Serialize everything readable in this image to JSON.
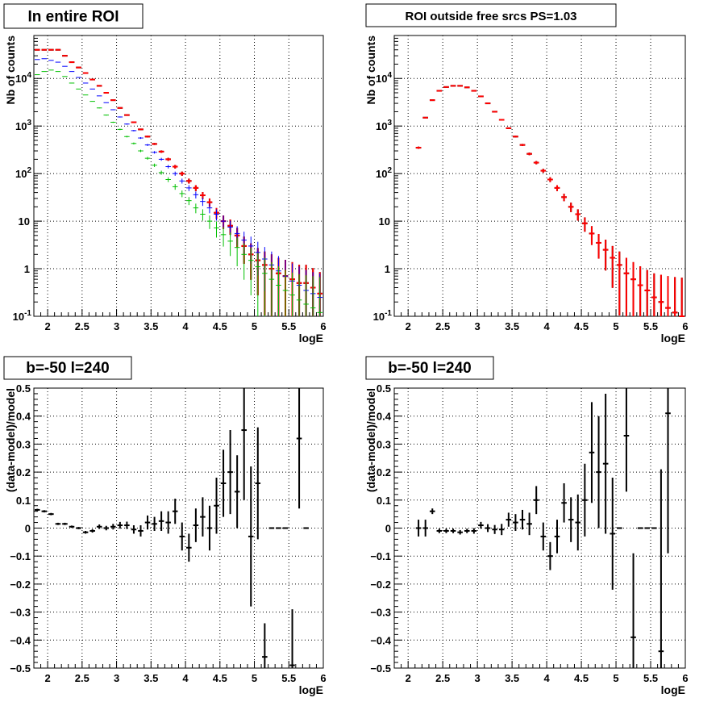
{
  "chart_data": [
    {
      "type": "scatter",
      "title": "In entire ROI",
      "xlabel": "logE",
      "ylabel": "Nb of counts",
      "xlim": [
        1.8,
        6.0
      ],
      "ylim": [
        0.1,
        80000
      ],
      "yscale": "log",
      "grid": true,
      "xticks": [
        "2",
        "2.5",
        "3",
        "3.5",
        "4",
        "4.5",
        "5",
        "5.5",
        "6"
      ],
      "yticks": [
        "10^-1",
        "1",
        "10",
        "10^2",
        "10^3",
        "10^4"
      ],
      "series": [
        {
          "color": "#000000",
          "x": [
            1.85,
            1.95,
            2.05,
            2.15,
            2.25,
            2.35,
            2.45,
            2.55,
            2.65,
            2.75,
            2.85,
            2.95,
            3.05,
            3.15,
            3.25,
            3.35,
            3.45,
            3.55,
            3.65,
            3.75,
            3.85,
            3.95,
            4.05,
            4.15,
            4.25,
            4.35,
            4.45,
            4.55,
            4.65,
            4.75,
            4.85,
            4.95,
            5.05,
            5.15,
            5.25,
            5.35,
            5.45,
            5.55,
            5.65,
            5.75,
            5.85,
            5.95
          ],
          "y": [
            40000,
            40000,
            40000,
            40000,
            30000,
            22000,
            17000,
            13000,
            9500,
            7000,
            5000,
            3500,
            2400,
            1700,
            1200,
            850,
            600,
            420,
            290,
            200,
            140,
            100,
            70,
            50,
            35,
            25,
            15,
            10,
            8,
            5,
            3,
            2,
            1.5,
            1.2,
            1.0,
            0.8,
            0.7,
            0.6,
            0.5,
            0.5,
            0.4,
            0.3
          ]
        },
        {
          "color": "#ff0000",
          "x": [
            1.85,
            1.95,
            2.05,
            2.15,
            2.25,
            2.35,
            2.45,
            2.55,
            2.65,
            2.75,
            2.85,
            2.95,
            3.05,
            3.15,
            3.25,
            3.35,
            3.45,
            3.55,
            3.65,
            3.75,
            3.85,
            3.95,
            4.05,
            4.15,
            4.25,
            4.35,
            4.45,
            4.55,
            4.65,
            4.75,
            4.85,
            4.95,
            5.05,
            5.15,
            5.25,
            5.35,
            5.45,
            5.55,
            5.65,
            5.75,
            5.85,
            5.95
          ],
          "y": [
            40000,
            40000,
            40000,
            40000,
            30000,
            22000,
            17000,
            13000,
            9500,
            7000,
            5000,
            3500,
            2400,
            1700,
            1200,
            850,
            600,
            420,
            290,
            200,
            140,
            100,
            70,
            50,
            35,
            25,
            15,
            10,
            8,
            5,
            3,
            2,
            1.5,
            1.2,
            1.0,
            0.8,
            0.7,
            0.6,
            0.5,
            0.5,
            0.4,
            0.3
          ]
        },
        {
          "color": "#0000ff",
          "x": [
            1.85,
            1.95,
            2.05,
            2.15,
            2.25,
            2.35,
            2.45,
            2.55,
            2.65,
            2.75,
            2.85,
            2.95,
            3.05,
            3.15,
            3.25,
            3.35,
            3.45,
            3.55,
            3.65,
            3.75,
            3.85,
            3.95,
            4.05,
            4.15,
            4.25,
            4.35,
            4.45,
            4.55,
            4.65,
            4.75,
            4.85,
            4.95,
            5.05,
            5.15,
            5.25,
            5.35,
            5.45,
            5.55,
            5.65,
            5.75,
            5.85,
            5.95
          ],
          "y": [
            25000,
            26000,
            24000,
            22000,
            18000,
            14000,
            10500,
            8000,
            6000,
            4300,
            3100,
            2200,
            1550,
            1100,
            800,
            560,
            400,
            280,
            200,
            140,
            100,
            70,
            50,
            36,
            26,
            19,
            14,
            10,
            7.5,
            5.5,
            4,
            3,
            2.2,
            1.6,
            1.2,
            0.9,
            0.7,
            0.55,
            0.45,
            0.35,
            0.3,
            0.25
          ]
        },
        {
          "color": "#00c000",
          "x": [
            1.85,
            1.95,
            2.05,
            2.15,
            2.25,
            2.35,
            2.45,
            2.55,
            2.65,
            2.75,
            2.85,
            2.95,
            3.05,
            3.15,
            3.25,
            3.35,
            3.45,
            3.55,
            3.65,
            3.75,
            3.85,
            3.95,
            4.05,
            4.15,
            4.25,
            4.35,
            4.45,
            4.55,
            4.65,
            4.75,
            4.85,
            4.95,
            5.05,
            5.15,
            5.25,
            5.35,
            5.45,
            5.55,
            5.65,
            5.75,
            5.85,
            5.95
          ],
          "y": [
            12000,
            14000,
            15000,
            14000,
            11000,
            8000,
            6000,
            4500,
            3300,
            2400,
            1700,
            1200,
            850,
            600,
            430,
            300,
            210,
            150,
            105,
            75,
            53,
            38,
            27,
            19,
            14,
            10,
            7.2,
            5.2,
            3.8,
            2.8,
            2.0,
            1.5,
            1.1,
            0.8,
            0.6,
            0.45,
            0.35,
            0.28,
            0.22,
            0.18,
            0.15,
            0.12
          ]
        }
      ]
    },
    {
      "type": "scatter",
      "title": "ROI outside free srcs PS=1.03",
      "xlabel": "logE",
      "ylabel": "Nb of counts",
      "xlim": [
        1.8,
        6.0
      ],
      "ylim": [
        0.1,
        80000
      ],
      "yscale": "log",
      "grid": true,
      "xticks": [
        "2",
        "2.5",
        "3",
        "3.5",
        "4",
        "4.5",
        "5",
        "5.5",
        "6"
      ],
      "yticks": [
        "10^-1",
        "1",
        "10",
        "10^2",
        "10^3",
        "10^4"
      ],
      "series": [
        {
          "color": "#000000",
          "x": [
            2.15,
            2.25,
            2.35,
            2.45,
            2.55,
            2.65,
            2.75,
            2.85,
            2.95,
            3.05,
            3.15,
            3.25,
            3.35,
            3.45,
            3.55,
            3.65,
            3.75,
            3.85,
            3.95,
            4.05,
            4.15,
            4.25,
            4.35,
            4.45,
            4.55,
            4.65,
            4.75,
            4.85,
            4.95,
            5.05,
            5.15,
            5.25,
            5.35,
            5.45,
            5.55,
            5.65,
            5.75,
            5.85,
            5.95
          ],
          "y": [
            350,
            1500,
            3500,
            5500,
            6600,
            7000,
            7000,
            6500,
            5500,
            4200,
            3000,
            2000,
            1350,
            900,
            600,
            400,
            260,
            170,
            115,
            75,
            50,
            32,
            20,
            14,
            9,
            5.5,
            3.5,
            2.5,
            1.7,
            1.2,
            0.8,
            0.6,
            0.45,
            0.35,
            0.25,
            0.2,
            0.15,
            0.12,
            0.1
          ]
        },
        {
          "color": "#ff0000",
          "x": [
            2.15,
            2.25,
            2.35,
            2.45,
            2.55,
            2.65,
            2.75,
            2.85,
            2.95,
            3.05,
            3.15,
            3.25,
            3.35,
            3.45,
            3.55,
            3.65,
            3.75,
            3.85,
            3.95,
            4.05,
            4.15,
            4.25,
            4.35,
            4.45,
            4.55,
            4.65,
            4.75,
            4.85,
            4.95,
            5.05,
            5.15,
            5.25,
            5.35,
            5.45,
            5.55,
            5.65,
            5.75,
            5.85,
            5.95
          ],
          "y": [
            350,
            1500,
            3500,
            5500,
            6600,
            7000,
            7000,
            6500,
            5500,
            4200,
            3000,
            2000,
            1350,
            900,
            600,
            400,
            260,
            170,
            115,
            75,
            50,
            32,
            20,
            14,
            9,
            5.5,
            3.5,
            2.5,
            1.7,
            1.2,
            0.8,
            0.6,
            0.45,
            0.35,
            0.25,
            0.2,
            0.15,
            0.12,
            0.1
          ]
        }
      ]
    },
    {
      "type": "scatter",
      "title": "b=-50 l=240",
      "xlabel": "logE",
      "ylabel": "(data-model)/model",
      "xlim": [
        1.8,
        6.0
      ],
      "ylim": [
        -0.5,
        0.5
      ],
      "grid": true,
      "xticks": [
        "2",
        "2.5",
        "3",
        "3.5",
        "4",
        "4.5",
        "5",
        "5.5",
        "6"
      ],
      "yticks": [
        "-0.5",
        "-0.4",
        "-0.3",
        "-0.2",
        "-0.1",
        "0",
        "0.1",
        "0.2",
        "0.3",
        "0.4",
        "0.5"
      ],
      "series": [
        {
          "color": "#000000",
          "x": [
            1.85,
            1.95,
            2.05,
            2.15,
            2.25,
            2.35,
            2.45,
            2.55,
            2.65,
            2.75,
            2.85,
            2.95,
            3.05,
            3.15,
            3.25,
            3.35,
            3.45,
            3.55,
            3.65,
            3.75,
            3.85,
            3.95,
            4.05,
            4.15,
            4.25,
            4.35,
            4.45,
            4.55,
            4.65,
            4.75,
            4.85,
            4.95,
            5.05,
            5.15,
            5.25,
            5.35,
            5.45,
            5.55,
            5.65,
            5.75
          ],
          "y": [
            0.065,
            0.06,
            0.05,
            0.015,
            0.015,
            0.005,
            0.0,
            -0.015,
            -0.01,
            0.005,
            0.0,
            0.005,
            0.01,
            0.01,
            -0.005,
            -0.01,
            0.02,
            0.015,
            0.025,
            0.02,
            0.06,
            -0.03,
            -0.07,
            0.01,
            0.04,
            0.0,
            0.08,
            0.16,
            0.2,
            0.13,
            0.35,
            -0.03,
            0.16,
            -0.46,
            0.0,
            0.0,
            0.0,
            -0.49,
            0.32,
            0.0
          ],
          "err": [
            0.004,
            0.004,
            0.004,
            0.004,
            0.004,
            0.004,
            0.004,
            0.005,
            0.006,
            0.008,
            0.008,
            0.01,
            0.012,
            0.013,
            0.015,
            0.02,
            0.025,
            0.025,
            0.035,
            0.04,
            0.045,
            0.05,
            0.05,
            0.06,
            0.07,
            0.08,
            0.1,
            0.12,
            0.15,
            0.13,
            0.25,
            0.25,
            0.2,
            0.12,
            0,
            0,
            0,
            0.2,
            0.25,
            0
          ]
        }
      ]
    },
    {
      "type": "scatter",
      "title": "b=-50 l=240",
      "xlabel": "logE",
      "ylabel": "(data-model)/model",
      "xlim": [
        1.8,
        6.0
      ],
      "ylim": [
        -0.5,
        0.5
      ],
      "grid": true,
      "xticks": [
        "2",
        "2.5",
        "3",
        "3.5",
        "4",
        "4.5",
        "5",
        "5.5",
        "6"
      ],
      "yticks": [
        "-0.5",
        "-0.4",
        "-0.3",
        "-0.2",
        "-0.1",
        "0",
        "0.1",
        "0.2",
        "0.3",
        "0.4",
        "0.5"
      ],
      "series": [
        {
          "color": "#000000",
          "x": [
            2.15,
            2.25,
            2.35,
            2.45,
            2.55,
            2.65,
            2.75,
            2.85,
            2.95,
            3.05,
            3.15,
            3.25,
            3.35,
            3.45,
            3.55,
            3.65,
            3.75,
            3.85,
            3.95,
            4.05,
            4.15,
            4.25,
            4.35,
            4.45,
            4.55,
            4.65,
            4.75,
            4.85,
            4.95,
            5.05,
            5.15,
            5.25,
            5.35,
            5.45,
            5.55,
            5.65,
            5.75
          ],
          "y": [
            0.0,
            0.0,
            0.06,
            -0.01,
            -0.01,
            -0.01,
            -0.015,
            -0.01,
            -0.01,
            0.01,
            0.0,
            -0.005,
            -0.005,
            0.03,
            0.02,
            0.03,
            0.015,
            0.1,
            -0.03,
            -0.1,
            -0.03,
            0.09,
            0.03,
            0.02,
            0.1,
            0.27,
            0.2,
            0.23,
            -0.02,
            0.0,
            0.33,
            -0.39,
            0.0,
            0.0,
            0.0,
            -0.44,
            0.41
          ],
          "err": [
            0.03,
            0.03,
            0.01,
            0.008,
            0.008,
            0.008,
            0.008,
            0.008,
            0.01,
            0.012,
            0.014,
            0.016,
            0.02,
            0.025,
            0.03,
            0.035,
            0.04,
            0.05,
            0.05,
            0.05,
            0.06,
            0.07,
            0.08,
            0.1,
            0.13,
            0.18,
            0.2,
            0.25,
            0.2,
            0,
            0.2,
            0.3,
            0,
            0,
            0,
            0.65,
            0.5
          ]
        }
      ]
    }
  ]
}
